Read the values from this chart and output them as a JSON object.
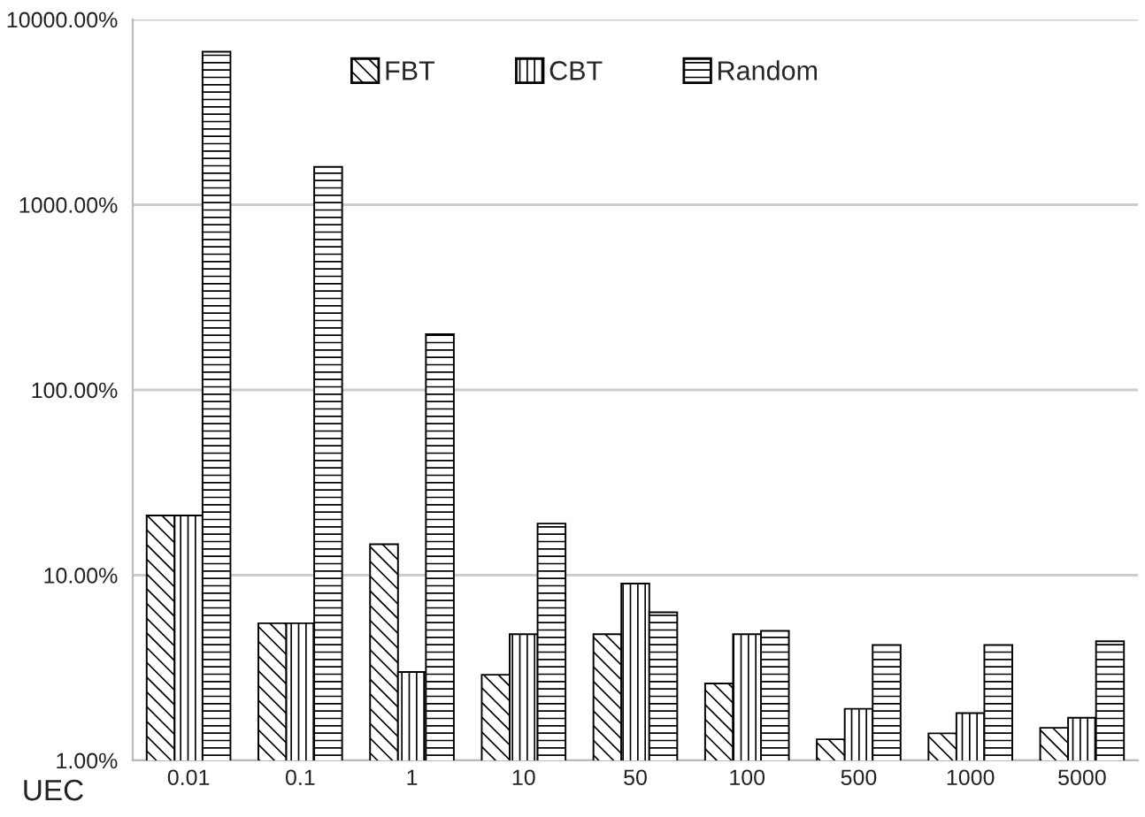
{
  "chart_data": {
    "type": "bar",
    "xlabel": "UEC",
    "categories": [
      "0.01",
      "0.1",
      "1",
      "10",
      "50",
      "100",
      "500",
      "1000",
      "5000"
    ],
    "series": [
      {
        "name": "FBT",
        "values": [
          21,
          5.5,
          14.7,
          2.9,
          4.8,
          2.6,
          1.3,
          1.4,
          1.5
        ]
      },
      {
        "name": "CBT",
        "values": [
          21,
          5.5,
          3.0,
          4.8,
          9.0,
          4.8,
          1.9,
          1.8,
          1.7
        ]
      },
      {
        "name": "Random",
        "values": [
          6700,
          1600,
          200,
          19,
          6.3,
          5.0,
          4.2,
          4.2,
          4.4
        ]
      }
    ],
    "log": true,
    "ylim": [
      1,
      10000
    ],
    "yticks": [
      {
        "value": 1,
        "label": "1.00%"
      },
      {
        "value": 10,
        "label": "10.00%"
      },
      {
        "value": 100,
        "label": "100.00%"
      },
      {
        "value": 1000,
        "label": "1000.00%"
      },
      {
        "value": 10000,
        "label": "10000.00%"
      }
    ],
    "grid": "y",
    "legend": "top"
  }
}
